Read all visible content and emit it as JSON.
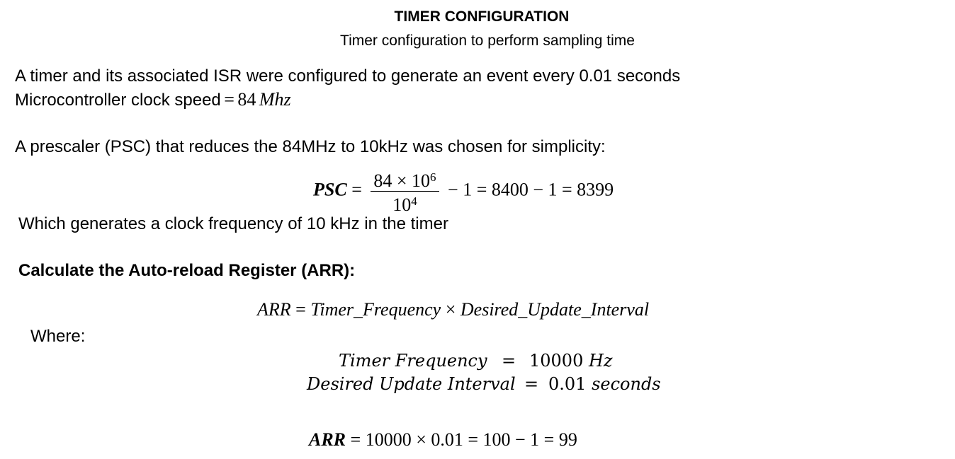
{
  "title": "TIMER CONFIGURATION",
  "subtitle": "Timer configuration to perform sampling time",
  "intro": {
    "line1": "A timer and its associated ISR were configured to generate an event every 0.01 seconds",
    "line2_text": "Microcontroller clock speed",
    "line2_eq": "=",
    "line2_value": "84",
    "line2_unit": "Mhz"
  },
  "prescaler": {
    "text": "A prescaler (PSC) that reduces the 84MHz to 10kHz was chosen for simplicity:",
    "lhs": "PSC",
    "eq": "=",
    "num_base": "84 × 10",
    "num_exp": "6",
    "den_base": "10",
    "den_exp": "4",
    "rest": "− 1 = 8400 − 1 = 8399"
  },
  "clock_note": "Which generates a clock frequency of 10 kHz in the timer",
  "arr_heading": "Calculate the Auto-reload Register (ARR):",
  "arr_formula": {
    "lhs": "ARR",
    "eq": "=",
    "term1": "Timer_Frequency",
    "times": "×",
    "term2": "Desired_Update_Interval"
  },
  "where_label": "Where:",
  "where_rows": [
    {
      "name": "Timer Frequency",
      "eq": "=",
      "value": "10000",
      "unit": "Hz"
    },
    {
      "name": "Desired Update Interval",
      "eq": "=",
      "value": "0.01",
      "unit": "seconds"
    }
  ],
  "arr_result": {
    "lhs": "ARR",
    "rest": "= 10000 × 0.01 = 100 − 1 = 99"
  }
}
